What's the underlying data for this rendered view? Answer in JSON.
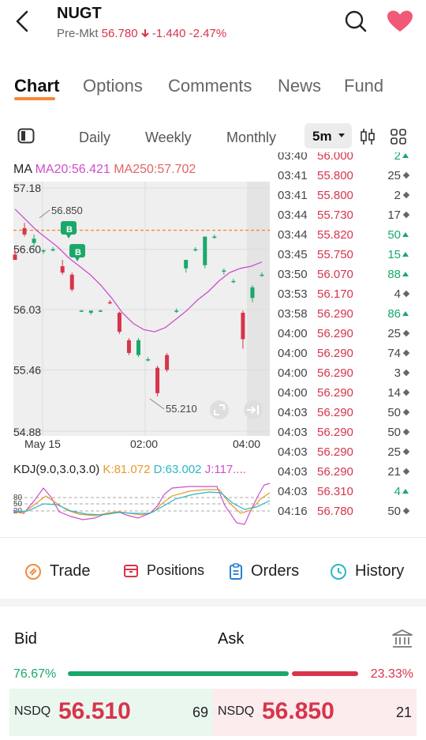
{
  "header": {
    "ticker": "NUGT",
    "premkt_label": "Pre-Mkt",
    "premkt_price": "56.780",
    "premkt_change": "-1.440",
    "premkt_pct": "-2.47%",
    "back_icon": "chevron-left-icon",
    "search_icon": "search-icon",
    "watchlist_icon": "heart-icon",
    "heart_color": "#f05a78"
  },
  "tabs": [
    {
      "label": "Chart",
      "active": true
    },
    {
      "label": "Options",
      "active": false
    },
    {
      "label": "Comments",
      "active": false
    },
    {
      "label": "News",
      "active": false
    },
    {
      "label": "Fund",
      "active": false
    }
  ],
  "periods": {
    "items": [
      "Daily",
      "Weekly",
      "Monthly"
    ],
    "active": "5m"
  },
  "ma_legend": {
    "label": "MA",
    "ma20": "MA20:56.421",
    "ma250": "MA250:57.702"
  },
  "chart_data": {
    "type": "candlestick",
    "y_ticks": [
      "57.18",
      "56.60",
      "56.03",
      "55.46",
      "54.88"
    ],
    "ylim": [
      54.88,
      57.18
    ],
    "x_ticks": [
      "May 15",
      "02:00",
      "04:00"
    ],
    "annotations": {
      "high_label": "56.850",
      "low_label": "55.210",
      "buy_marker": "B",
      "ref_line_price": 56.78
    },
    "candles": [
      {
        "o": 56.55,
        "h": 56.6,
        "l": 56.5,
        "c": 56.5
      },
      {
        "o": 56.8,
        "h": 56.85,
        "l": 56.72,
        "c": 56.74
      },
      {
        "o": 56.66,
        "h": 56.74,
        "l": 56.62,
        "c": 56.7
      },
      {
        "o": 56.58,
        "h": 56.6,
        "l": 56.56,
        "c": 56.59
      },
      {
        "o": 56.6,
        "h": 56.62,
        "l": 56.58,
        "c": 56.6
      },
      {
        "o": 56.44,
        "h": 56.5,
        "l": 56.36,
        "c": 56.38
      },
      {
        "o": 56.36,
        "h": 56.38,
        "l": 56.2,
        "c": 56.22
      },
      {
        "o": 56.02,
        "h": 56.03,
        "l": 56.01,
        "c": 56.02
      },
      {
        "o": 56.0,
        "h": 56.02,
        "l": 55.98,
        "c": 56.02
      },
      {
        "o": 56.02,
        "h": 56.03,
        "l": 56.01,
        "c": 56.02
      },
      {
        "o": 56.1,
        "h": 56.12,
        "l": 56.08,
        "c": 56.09
      },
      {
        "o": 56.0,
        "h": 56.01,
        "l": 55.8,
        "c": 55.82
      },
      {
        "o": 55.74,
        "h": 55.76,
        "l": 55.6,
        "c": 55.62
      },
      {
        "o": 55.6,
        "h": 55.76,
        "l": 55.58,
        "c": 55.74
      },
      {
        "o": 55.56,
        "h": 55.58,
        "l": 55.54,
        "c": 55.56
      },
      {
        "o": 55.48,
        "h": 55.5,
        "l": 55.21,
        "c": 55.24
      },
      {
        "o": 55.6,
        "h": 55.62,
        "l": 55.44,
        "c": 55.46
      },
      {
        "o": 56.02,
        "h": 56.04,
        "l": 56.0,
        "c": 56.02
      },
      {
        "o": 56.42,
        "h": 56.5,
        "l": 56.38,
        "c": 56.5
      },
      {
        "o": 56.6,
        "h": 56.62,
        "l": 56.58,
        "c": 56.6
      },
      {
        "o": 56.45,
        "h": 56.72,
        "l": 56.42,
        "c": 56.72
      },
      {
        "o": 56.72,
        "h": 56.74,
        "l": 56.7,
        "c": 56.72
      },
      {
        "o": 56.4,
        "h": 56.42,
        "l": 56.36,
        "c": 56.4
      },
      {
        "o": 56.3,
        "h": 56.32,
        "l": 56.28,
        "c": 56.3
      },
      {
        "o": 56.0,
        "h": 56.02,
        "l": 55.66,
        "c": 55.75
      },
      {
        "o": 56.14,
        "h": 56.26,
        "l": 56.1,
        "c": 56.24
      },
      {
        "o": 56.36,
        "h": 56.38,
        "l": 56.34,
        "c": 56.36
      }
    ],
    "ma20_line": [
      56.98,
      56.88,
      56.78,
      56.7,
      56.62,
      56.52,
      56.44,
      56.36,
      56.26,
      56.14,
      56.0,
      55.9,
      55.84,
      55.82,
      55.86,
      55.94,
      56.02,
      56.12,
      56.2,
      56.3,
      56.38,
      56.42,
      56.44,
      56.48
    ]
  },
  "kdj": {
    "label": "KDJ(9.0,3.0,3.0)",
    "k": "K:81.072",
    "d": "D:63.002",
    "j": "J:117....",
    "levels": [
      "80",
      "50",
      "20"
    ]
  },
  "ticks": [
    {
      "time": "03:40",
      "price": "56.000",
      "vol": "2",
      "dir": "up"
    },
    {
      "time": "03:41",
      "price": "55.800",
      "vol": "25",
      "dir": "neutral"
    },
    {
      "time": "03:41",
      "price": "55.800",
      "vol": "2",
      "dir": "neutral"
    },
    {
      "time": "03:44",
      "price": "55.730",
      "vol": "17",
      "dir": "neutral"
    },
    {
      "time": "03:44",
      "price": "55.820",
      "vol": "50",
      "dir": "up"
    },
    {
      "time": "03:45",
      "price": "55.750",
      "vol": "15",
      "dir": "up"
    },
    {
      "time": "03:50",
      "price": "56.070",
      "vol": "88",
      "dir": "up"
    },
    {
      "time": "03:53",
      "price": "56.170",
      "vol": "4",
      "dir": "neutral"
    },
    {
      "time": "03:58",
      "price": "56.290",
      "vol": "86",
      "dir": "up"
    },
    {
      "time": "04:00",
      "price": "56.290",
      "vol": "25",
      "dir": "neutral"
    },
    {
      "time": "04:00",
      "price": "56.290",
      "vol": "74",
      "dir": "neutral"
    },
    {
      "time": "04:00",
      "price": "56.290",
      "vol": "3",
      "dir": "neutral"
    },
    {
      "time": "04:00",
      "price": "56.290",
      "vol": "14",
      "dir": "neutral"
    },
    {
      "time": "04:03",
      "price": "56.290",
      "vol": "50",
      "dir": "neutral"
    },
    {
      "time": "04:03",
      "price": "56.290",
      "vol": "50",
      "dir": "neutral"
    },
    {
      "time": "04:03",
      "price": "56.290",
      "vol": "25",
      "dir": "neutral"
    },
    {
      "time": "04:03",
      "price": "56.290",
      "vol": "21",
      "dir": "neutral"
    },
    {
      "time": "04:03",
      "price": "56.310",
      "vol": "4",
      "dir": "up"
    },
    {
      "time": "04:16",
      "price": "56.780",
      "vol": "50",
      "dir": "neutral"
    }
  ],
  "actions": [
    {
      "label": "Trade",
      "icon": "trade-icon"
    },
    {
      "label": "Positions",
      "icon": "positions-icon"
    },
    {
      "label": "Orders",
      "icon": "orders-icon"
    },
    {
      "label": "History",
      "icon": "history-icon"
    }
  ],
  "bidask": {
    "bid_label": "Bid",
    "ask_label": "Ask",
    "bank_icon": "bank-icon",
    "bid_pct": "76.67%",
    "ask_pct": "23.33%",
    "bid_ratio": 0.7667,
    "bid": {
      "exchange": "NSDQ",
      "price": "56.510",
      "size": "69"
    },
    "ask": {
      "exchange": "NSDQ",
      "price": "56.850",
      "size": "21"
    }
  },
  "colors": {
    "up": "#1aa86a",
    "down": "#d8344a",
    "accent": "#f5893a"
  }
}
